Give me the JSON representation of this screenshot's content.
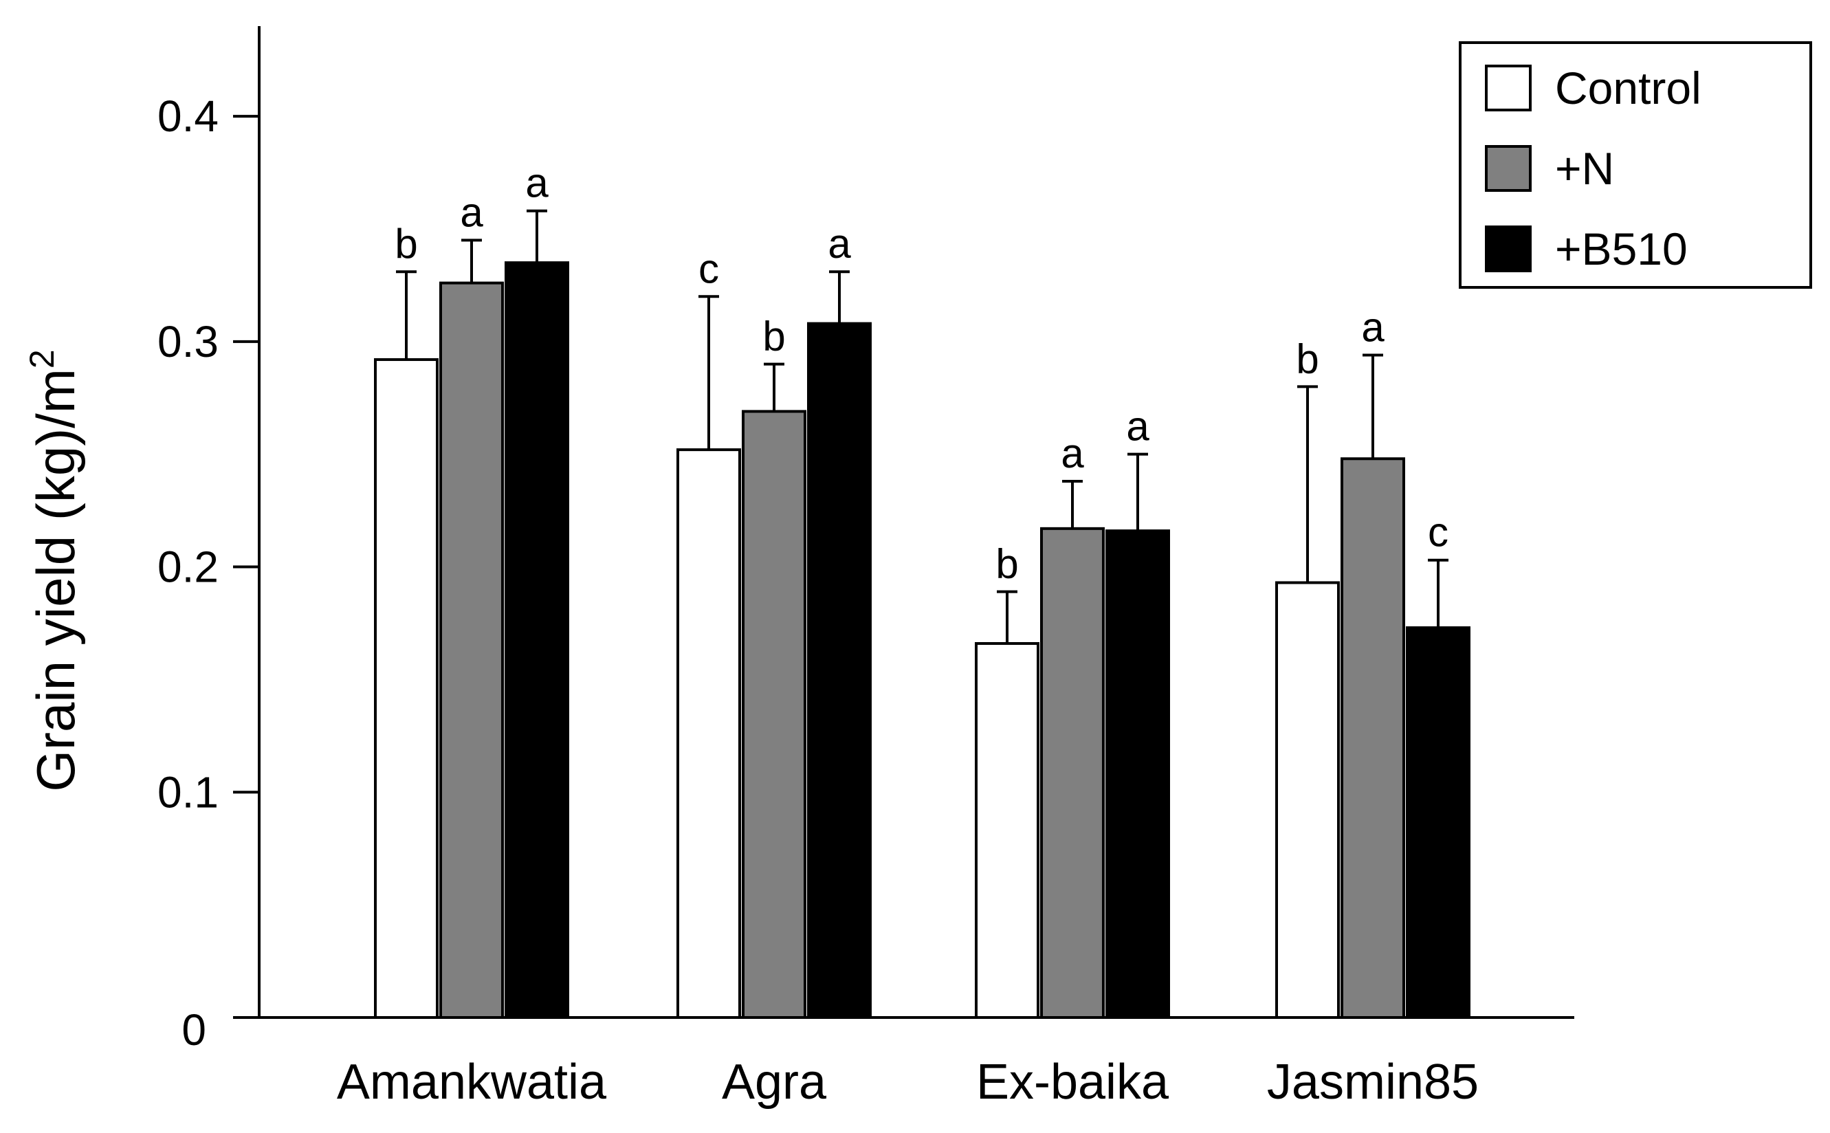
{
  "chart_data": {
    "type": "bar",
    "title": "",
    "xlabel": "",
    "ylabel": "Grain yield (kg)/m",
    "ylabel_superscript": "2",
    "ylim": [
      0,
      0.44
    ],
    "yticks": [
      0,
      0.1,
      0.2,
      0.3,
      0.4
    ],
    "ytick_labels": [
      "0",
      "0.1",
      "0.2",
      "0.3",
      "0.4"
    ],
    "grid": false,
    "legend_position": "top-right",
    "categories": [
      "Amankwatia",
      "Agra",
      "Ex-baika",
      "Jasmin85"
    ],
    "series": [
      {
        "name": "Control",
        "color": "#ffffff",
        "values": [
          0.292,
          0.252,
          0.166,
          0.193
        ],
        "errors": [
          0.039,
          0.068,
          0.023,
          0.087
        ],
        "significance": [
          "b",
          "c",
          "b",
          "b"
        ]
      },
      {
        "name": "+N",
        "color": "#808080",
        "values": [
          0.326,
          0.269,
          0.217,
          0.248
        ],
        "errors": [
          0.019,
          0.021,
          0.021,
          0.046
        ],
        "significance": [
          "a",
          "b",
          "a",
          "a"
        ]
      },
      {
        "name": "+B510",
        "color": "#000000",
        "values": [
          0.335,
          0.308,
          0.216,
          0.173
        ],
        "errors": [
          0.023,
          0.023,
          0.034,
          0.03
        ],
        "significance": [
          "a",
          "a",
          "a",
          "c"
        ]
      }
    ]
  }
}
